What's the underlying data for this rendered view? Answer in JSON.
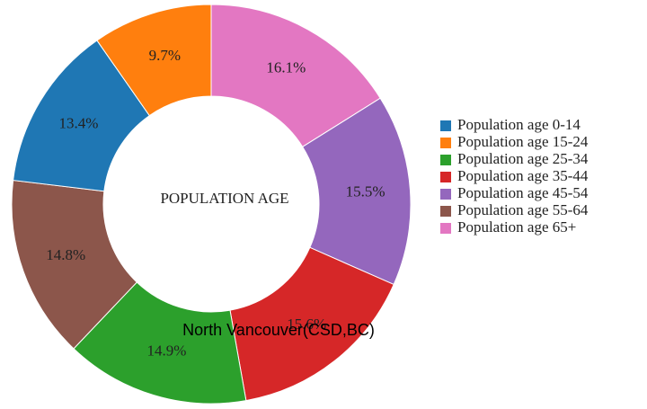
{
  "chart_data": {
    "type": "pie",
    "title": "POPULATION AGE",
    "subtitle": "North Vancouver(CSD,BC)",
    "categories": [
      "Population age 0-14",
      "Population age 15-24",
      "Population age 25-34",
      "Population age 35-44",
      "Population age 45-54",
      "Population age 55-64",
      "Population age 65+"
    ],
    "values": [
      13.4,
      9.7,
      14.9,
      15.6,
      15.5,
      14.8,
      16.1
    ],
    "value_labels": [
      "13.4%",
      "9.7%",
      "14.9%",
      "15.6%",
      "15.5%",
      "14.8%",
      "16.1%"
    ],
    "colors": [
      "#1f77b4",
      "#ff7f0e",
      "#2ca02c",
      "#d62728",
      "#9467bd",
      "#8c564b",
      "#e377c2"
    ],
    "legend": "right"
  }
}
